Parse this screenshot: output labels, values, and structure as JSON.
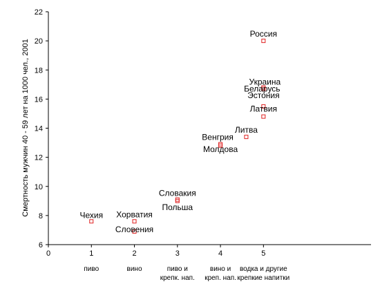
{
  "chart_data": {
    "type": "scatter",
    "title": "",
    "xlabel": "",
    "ylabel": "Смертность мужчин 40 - 59 лет на 1000 чел., 2001",
    "xlim": [
      0,
      7.5
    ],
    "ylim": [
      6,
      22
    ],
    "grid": false,
    "y_ticks": [
      "6",
      "8",
      "10",
      "12",
      "14",
      "16",
      "18",
      "20",
      "22"
    ],
    "x_ticks": [
      "0",
      "1",
      "2",
      "3",
      "4",
      "5"
    ],
    "categories": [
      {
        "x": 1,
        "lines": [
          "пиво"
        ]
      },
      {
        "x": 2,
        "lines": [
          "вино"
        ]
      },
      {
        "x": 3,
        "lines": [
          "пиво и",
          "крепк. нап."
        ]
      },
      {
        "x": 4,
        "lines": [
          "вино и",
          "креп. нап."
        ]
      },
      {
        "x": 5,
        "lines": [
          "водка и другие",
          "крепкие напитки"
        ]
      }
    ],
    "points": [
      {
        "label": "Чехия",
        "x": 1.0,
        "y": 7.6
      },
      {
        "label": "Хорватия",
        "x": 2.0,
        "y": 7.6
      },
      {
        "label": "Словения",
        "x": 2.0,
        "y": 6.9
      },
      {
        "label": "Словакия",
        "x": 3.0,
        "y": 9.1
      },
      {
        "label": "Польша",
        "x": 3.0,
        "y": 9.0
      },
      {
        "label": "Венгрия",
        "x": 4.0,
        "y": 12.9
      },
      {
        "label": "Молдова",
        "x": 4.0,
        "y": 12.8
      },
      {
        "label": "Литва",
        "x": 4.6,
        "y": 13.4
      },
      {
        "label": "Латвия",
        "x": 5.0,
        "y": 14.8
      },
      {
        "label": "Эстония",
        "x": 5.0,
        "y": 15.5
      },
      {
        "label": "Беларусь",
        "x": 5.0,
        "y": 16.7
      },
      {
        "label": "Украина",
        "x": 5.0,
        "y": 16.8
      },
      {
        "label": "Россия",
        "x": 5.0,
        "y": 20.0
      }
    ],
    "colors": {
      "marker": "#e02020",
      "axis": "#000000"
    }
  }
}
